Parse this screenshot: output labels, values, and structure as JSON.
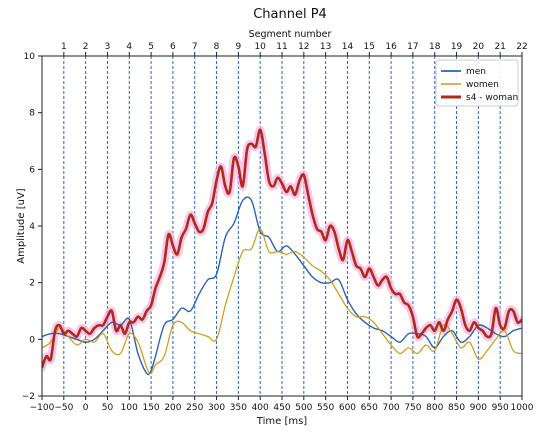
{
  "chart_data": {
    "type": "line",
    "title": "Channel P4",
    "top_axis_label": "Segment number",
    "xlabel": "Time [ms]",
    "ylabel": "Amplitude [uV]",
    "xlim": [
      -100,
      1000
    ],
    "ylim": [
      -2,
      10
    ],
    "x_ticks": [
      -100,
      -50,
      0,
      50,
      100,
      150,
      200,
      250,
      300,
      350,
      400,
      450,
      500,
      550,
      600,
      650,
      700,
      750,
      800,
      850,
      900,
      950,
      1000
    ],
    "y_ticks": [
      -2,
      0,
      2,
      4,
      6,
      8,
      10
    ],
    "segment_boundaries": [
      -50,
      0,
      50,
      100,
      150,
      200,
      250,
      300,
      350,
      400,
      450,
      500,
      550,
      600,
      650,
      700,
      750,
      800,
      850,
      900,
      950
    ],
    "segment_labels": [
      "1",
      "2",
      "3",
      "4",
      "5",
      "6",
      "7",
      "8",
      "9",
      "10",
      "11",
      "12",
      "13",
      "14",
      "15",
      "16",
      "17",
      "18",
      "19",
      "20",
      "21",
      "22"
    ],
    "legend_position": "top-right",
    "colors": {
      "men": "#2a63b4",
      "women": "#cf9a0e",
      "s4": "#b02a17",
      "halo": "#f5b6e8",
      "segment_line": "#2a63c8"
    },
    "series": [
      {
        "name": "men",
        "x": [
          -100,
          -80,
          -60,
          -40,
          -20,
          0,
          20,
          40,
          60,
          80,
          100,
          120,
          140,
          150,
          160,
          180,
          200,
          220,
          240,
          260,
          280,
          300,
          320,
          340,
          360,
          380,
          400,
          420,
          440,
          460,
          480,
          500,
          520,
          540,
          560,
          580,
          600,
          620,
          640,
          660,
          680,
          700,
          720,
          740,
          760,
          780,
          800,
          820,
          840,
          860,
          880,
          900,
          920,
          940,
          960,
          980,
          1000
        ],
        "y": [
          0.1,
          0.2,
          0.2,
          0.1,
          0,
          -0.1,
          0,
          0.3,
          0.6,
          0.5,
          0.7,
          -0.5,
          -1.2,
          -1.1,
          -0.6,
          0.5,
          0.7,
          1.1,
          1.0,
          1.6,
          2.1,
          2.3,
          3.6,
          4.1,
          4.9,
          4.9,
          3.8,
          3.6,
          3.1,
          3.3,
          3.0,
          2.6,
          2.2,
          2.0,
          2.0,
          2.1,
          1.4,
          0.9,
          0.6,
          0.4,
          0.3,
          0.1,
          -0.1,
          0.2,
          0.2,
          0.1,
          -0.3,
          0.1,
          0.3,
          -0.1,
          0.1,
          0.5,
          0.4,
          0.2,
          0.1,
          0.3,
          0.4
        ]
      },
      {
        "name": "women",
        "x": [
          -100,
          -80,
          -60,
          -40,
          -20,
          0,
          20,
          40,
          60,
          80,
          100,
          120,
          140,
          150,
          160,
          180,
          200,
          220,
          240,
          260,
          280,
          300,
          320,
          340,
          360,
          380,
          400,
          420,
          440,
          460,
          480,
          500,
          520,
          540,
          560,
          580,
          600,
          620,
          640,
          660,
          680,
          700,
          720,
          740,
          760,
          780,
          800,
          820,
          840,
          860,
          880,
          900,
          920,
          940,
          960,
          980,
          1000
        ],
        "y": [
          -0.3,
          -0.1,
          0.4,
          0.1,
          -0.2,
          0,
          -0.1,
          0.2,
          -0.4,
          -0.5,
          0.2,
          -0.1,
          -1.0,
          -1.2,
          -0.9,
          -0.6,
          0.5,
          0.6,
          0.3,
          0.2,
          0.1,
          0.0,
          1.2,
          2.2,
          3.1,
          3.2,
          3.9,
          3.1,
          3.1,
          3.0,
          3.1,
          2.9,
          2.6,
          2.4,
          2.1,
          1.6,
          1.1,
          0.8,
          0.8,
          0.6,
          0.2,
          -0.2,
          -0.5,
          -0.3,
          -0.5,
          -0.2,
          -0.4,
          0.5,
          0.2,
          -0.3,
          -0.1,
          -0.7,
          -0.4,
          0.0,
          0.3,
          -0.4,
          -0.5
        ]
      },
      {
        "name": "s4 - woman",
        "x": [
          -100,
          -90,
          -80,
          -70,
          -60,
          -50,
          -40,
          -30,
          -20,
          -10,
          0,
          10,
          20,
          30,
          40,
          50,
          60,
          70,
          80,
          90,
          100,
          110,
          120,
          130,
          140,
          150,
          160,
          170,
          180,
          190,
          200,
          210,
          220,
          230,
          240,
          250,
          260,
          270,
          280,
          290,
          300,
          310,
          320,
          330,
          340,
          350,
          360,
          370,
          380,
          390,
          400,
          410,
          420,
          430,
          440,
          450,
          460,
          470,
          480,
          490,
          500,
          510,
          520,
          530,
          540,
          550,
          560,
          570,
          580,
          590,
          600,
          610,
          620,
          630,
          640,
          650,
          660,
          670,
          680,
          690,
          700,
          710,
          720,
          730,
          740,
          750,
          760,
          770,
          780,
          790,
          800,
          810,
          820,
          830,
          840,
          850,
          860,
          870,
          880,
          890,
          900,
          910,
          920,
          930,
          940,
          950,
          960,
          970,
          980,
          990,
          1000
        ],
        "y": [
          -1.0,
          -0.6,
          -0.7,
          0.3,
          0.5,
          0.2,
          0.3,
          0.2,
          0.1,
          0.4,
          0.3,
          0.2,
          0.4,
          0.5,
          0.5,
          0.8,
          1.0,
          0.3,
          0.5,
          0.2,
          0.6,
          0.6,
          0.8,
          0.7,
          1.0,
          1.2,
          1.8,
          2.2,
          2.7,
          3.7,
          3.3,
          3.0,
          3.6,
          3.9,
          4.4,
          4.1,
          3.8,
          3.9,
          4.5,
          4.8,
          5.6,
          6.1,
          5.4,
          5.2,
          6.4,
          6.1,
          5.4,
          6.7,
          6.9,
          6.8,
          7.4,
          6.6,
          5.6,
          5.4,
          5.7,
          5.5,
          5.2,
          5.4,
          5.1,
          5.6,
          5.8,
          5.1,
          4.4,
          3.9,
          3.8,
          3.5,
          4.0,
          3.8,
          3.2,
          2.8,
          3.5,
          3.1,
          2.6,
          2.5,
          2.2,
          2.5,
          2.2,
          1.9,
          2.1,
          2.2,
          1.8,
          1.6,
          1.6,
          1.3,
          1.2,
          0.8,
          0.1,
          0.2,
          0.4,
          0.5,
          0.3,
          0.6,
          0.3,
          0.7,
          1.0,
          1.4,
          1.1,
          0.5,
          0.3,
          0.6,
          0.4,
          0.3,
          0.1,
          0.2,
          1.1,
          0.5,
          0.4,
          1.0,
          1.0,
          0.6,
          0.7
        ]
      }
    ]
  }
}
